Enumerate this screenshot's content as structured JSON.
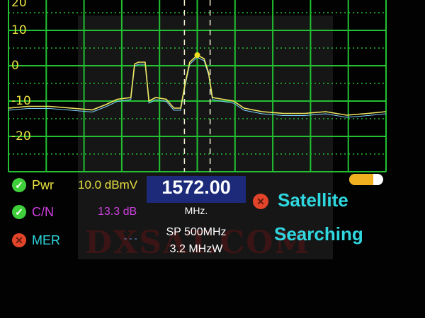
{
  "chart_data": {
    "type": "line",
    "title": "",
    "xlabel": "",
    "ylabel": "",
    "y_ticks": [
      "20",
      "10",
      "0",
      "-10",
      "-20"
    ],
    "ylim": [
      -30,
      20
    ],
    "xlim": [
      1322,
      1822
    ],
    "grid": true,
    "markers_x": [
      1555,
      1589
    ],
    "series": [
      {
        "color": "#f0e860",
        "x": [
          1322,
          1348,
          1376,
          1405,
          1433,
          1451,
          1466,
          1484,
          1489,
          1494,
          1503,
          1508,
          1517,
          1531,
          1541,
          1550,
          1556,
          1562,
          1572,
          1581,
          1587,
          1592,
          1606,
          1620,
          1634,
          1658,
          1686,
          1714,
          1742,
          1770,
          1798,
          1822
        ],
        "y": [
          -12,
          -11.5,
          -11.5,
          -12,
          -12.5,
          -11,
          -9.5,
          -9,
          0.5,
          1,
          1,
          -10,
          -9,
          -9.5,
          -12,
          -12,
          -5,
          1,
          3,
          2,
          -2,
          -9,
          -9.5,
          -10,
          -12,
          -13,
          -13.5,
          -13.5,
          -13,
          -14,
          -13.5,
          -13
        ]
      }
    ]
  },
  "colors": {
    "grid": "#22c032",
    "trace": "#f0e860",
    "accent": "#2fd8e0",
    "ok": "#3fcf3a",
    "fail": "#e2442a"
  },
  "readings": {
    "pwr": {
      "label": "Pwr",
      "value": "10.0 dBmV",
      "status": "ok"
    },
    "cn": {
      "label": "C/N",
      "value": "13.3 dB",
      "status": "ok"
    },
    "mer": {
      "label": "MER",
      "value": "- - -",
      "status": "fail"
    }
  },
  "frequency": {
    "value": "1572.00",
    "unit": "MHz."
  },
  "span": "SP 500MHz",
  "bandwidth": "3.2 MHzW",
  "status": {
    "line1": "Satellite",
    "line2": "Searching",
    "icon": "fail"
  },
  "battery_level": 0.7,
  "watermark": "DXSAT.COM"
}
